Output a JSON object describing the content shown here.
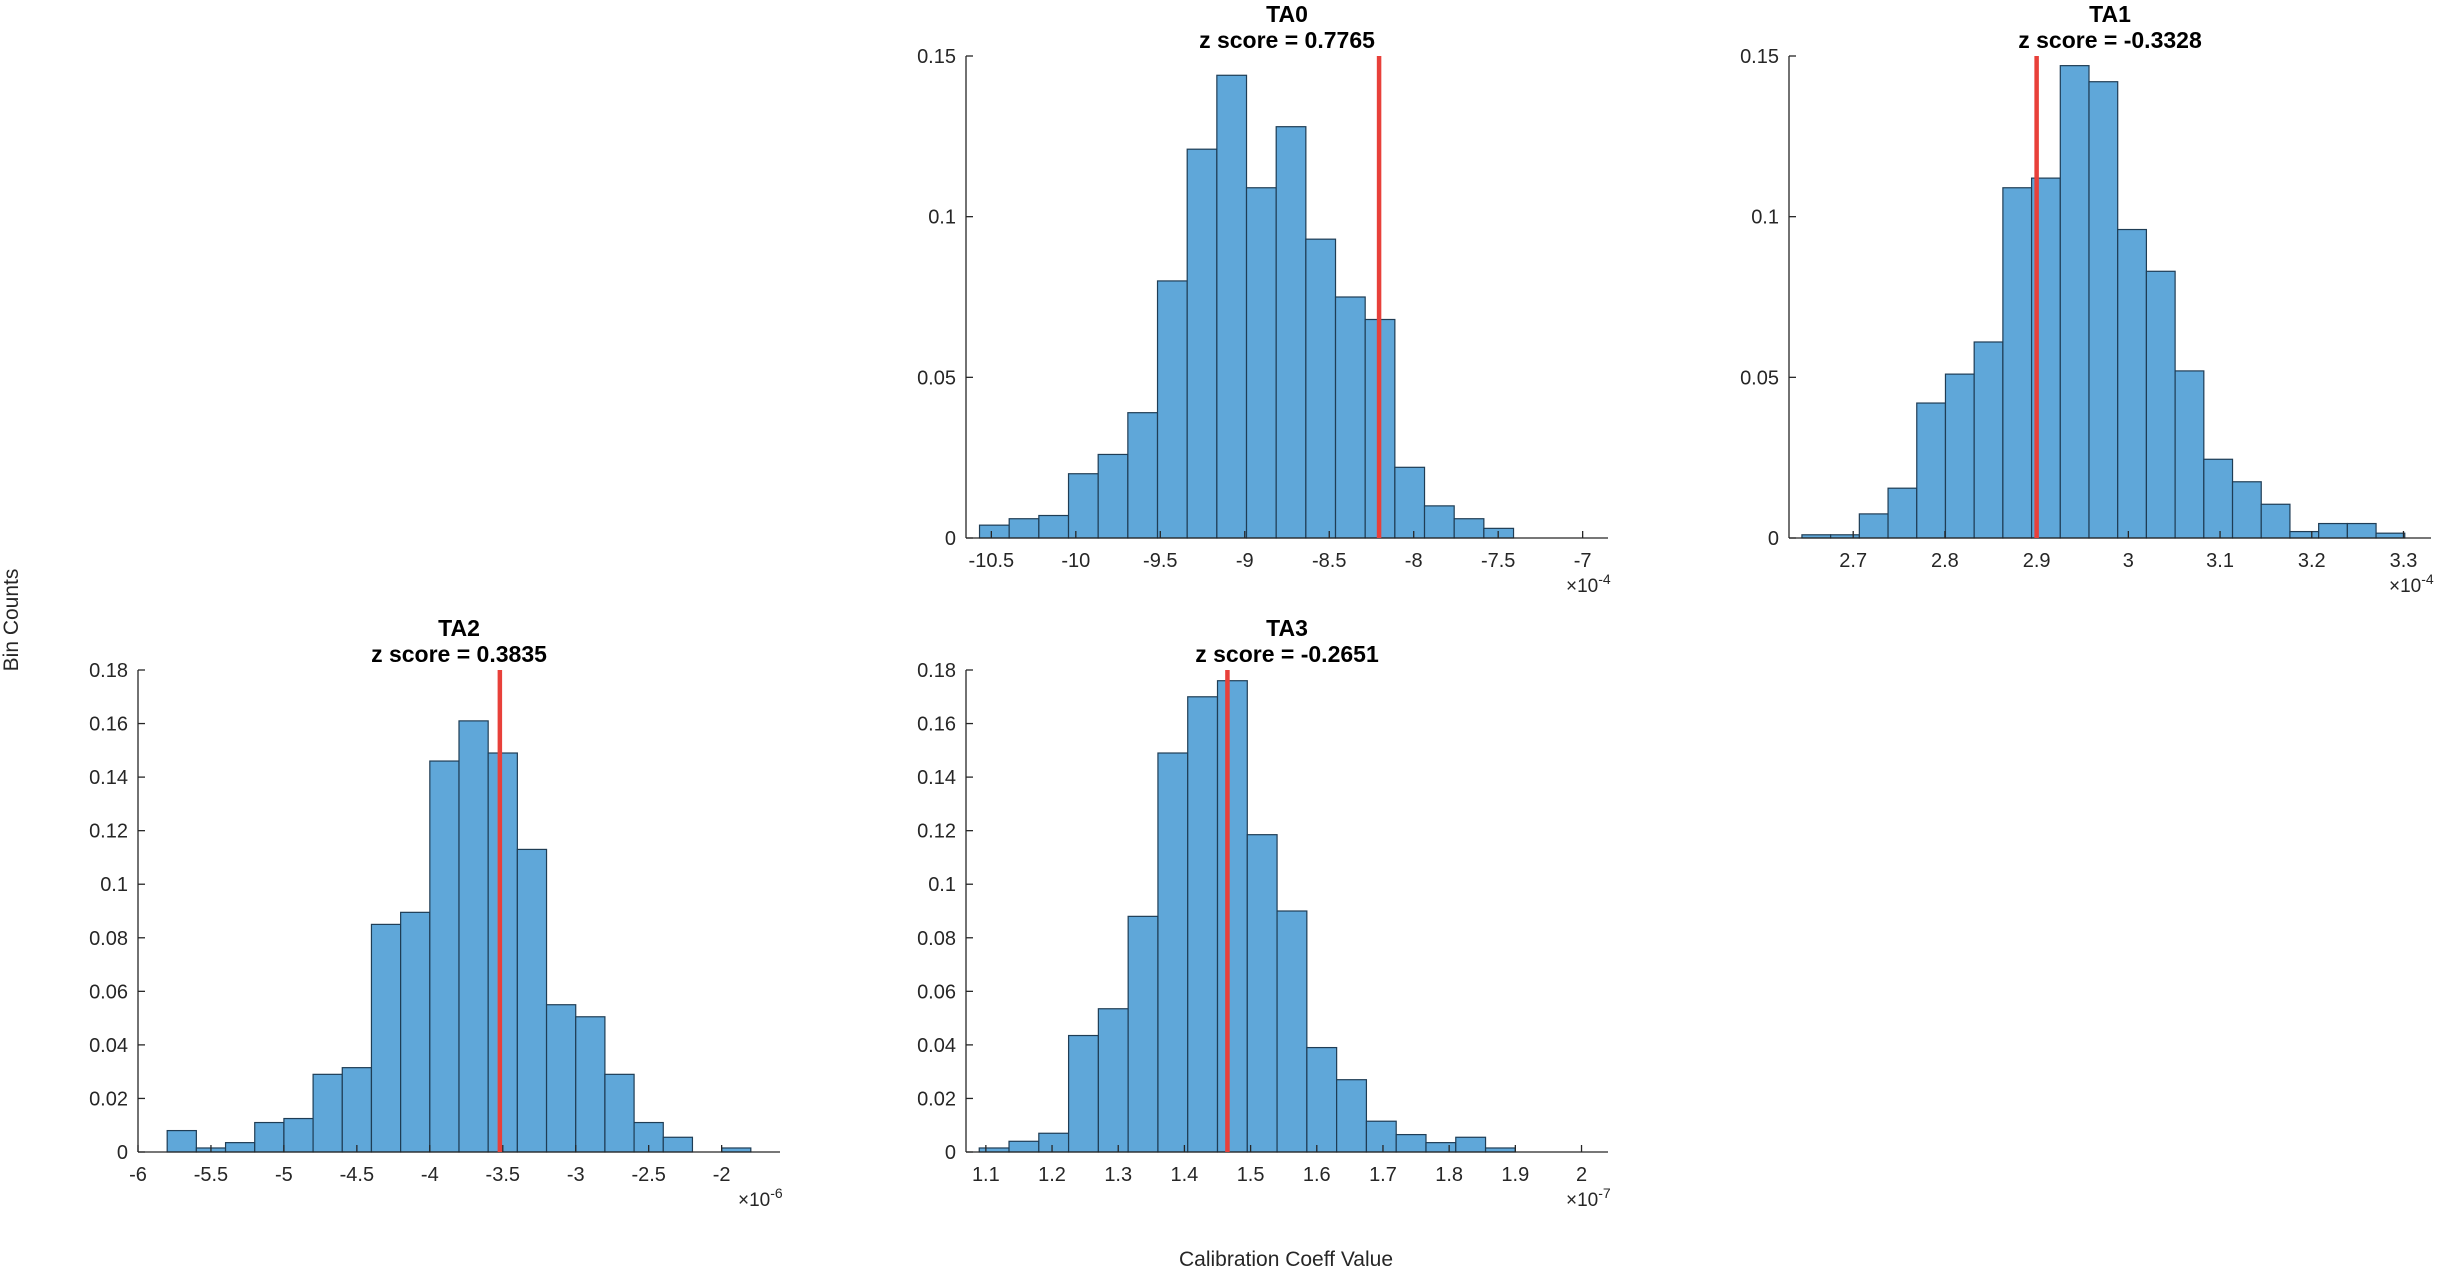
{
  "figure": {
    "ylabel": "Bin Counts",
    "xlabel": "Calibration Coeff Value"
  },
  "colors": {
    "bar_fill": "#5fa7d9",
    "bar_edge": "#1f3d55",
    "marker": "#e8403a",
    "axis": "#262626"
  },
  "chart_data": [
    {
      "type": "bar",
      "name": "TA0",
      "title": "TA0",
      "subtitle": "z score = 0.7765",
      "scale_label": "×10",
      "scale_exponent": "-4",
      "xlim": [
        -10.65,
        -6.85
      ],
      "ylim": [
        0,
        0.15
      ],
      "bin_start": -10.57,
      "bin_width": 0.1756,
      "values": [
        0.004,
        0.006,
        0.007,
        0.02,
        0.026,
        0.039,
        0.08,
        0.121,
        0.144,
        0.109,
        0.128,
        0.093,
        0.075,
        0.068,
        0.022,
        0.01,
        0.006,
        0.003
      ],
      "marker_x": -8.205,
      "xticks": [
        -10.5,
        -10,
        -9.5,
        -9,
        -8.5,
        -8,
        -7.5,
        -7
      ],
      "xtick_labels": [
        "-10.5",
        "-10",
        "-9.5",
        "-9",
        "-8.5",
        "-8",
        "-7.5",
        "-7"
      ],
      "yticks": [
        0,
        0.05,
        0.1,
        0.15
      ],
      "ytick_labels": [
        "0",
        "0.05",
        "0.1",
        "0.15"
      ]
    },
    {
      "type": "bar",
      "name": "TA1",
      "title": "TA1",
      "subtitle": "z score = -0.3328",
      "scale_label": "×10",
      "scale_exponent": "-4",
      "xlim": [
        2.63,
        3.33
      ],
      "ylim": [
        0,
        0.15
      ],
      "bin_start": 2.6441,
      "bin_width": 0.0313,
      "values": [
        0.001,
        0.001,
        0.0075,
        0.0155,
        0.042,
        0.051,
        0.061,
        0.109,
        0.112,
        0.147,
        0.142,
        0.096,
        0.083,
        0.052,
        0.0245,
        0.0175,
        0.0105,
        0.002,
        0.0045,
        0.0045,
        0.0015
      ],
      "marker_x": 2.9,
      "xticks": [
        2.7,
        2.8,
        2.9,
        3,
        3.1,
        3.2,
        3.3
      ],
      "xtick_labels": [
        "2.7",
        "2.8",
        "2.9",
        "3",
        "3.1",
        "3.2",
        "3.3"
      ],
      "yticks": [
        0,
        0.05,
        0.1,
        0.15
      ],
      "ytick_labels": [
        "0",
        "0.05",
        "0.1",
        "0.15"
      ]
    },
    {
      "type": "bar",
      "name": "TA2",
      "title": "TA2",
      "subtitle": "z score = 0.3835",
      "scale_label": "×10",
      "scale_exponent": "-6",
      "xlim": [
        -6,
        -1.6
      ],
      "ylim": [
        0,
        0.18
      ],
      "bin_start": -5.8,
      "bin_width": 0.2,
      "values": [
        0.008,
        0.0015,
        0.0035,
        0.011,
        0.0125,
        0.029,
        0.0315,
        0.085,
        0.0895,
        0.146,
        0.161,
        0.149,
        0.113,
        0.055,
        0.0505,
        0.029,
        0.011,
        0.0055,
        0.0,
        0.0015
      ],
      "marker_x": -3.52,
      "xticks": [
        -6,
        -5.5,
        -5,
        -4.5,
        -4,
        -3.5,
        -3,
        -2.5,
        -2
      ],
      "xtick_labels": [
        "-6",
        "-5.5",
        "-5",
        "-4.5",
        "-4",
        "-3.5",
        "-3",
        "-2.5",
        "-2"
      ],
      "yticks": [
        0,
        0.02,
        0.04,
        0.06,
        0.08,
        0.1,
        0.12,
        0.14,
        0.16,
        0.18
      ],
      "ytick_labels": [
        "0",
        "0.02",
        "0.04",
        "0.06",
        "0.08",
        "0.1",
        "0.12",
        "0.14",
        "0.16",
        "0.18"
      ]
    },
    {
      "type": "bar",
      "name": "TA3",
      "title": "TA3",
      "subtitle": "z score = -0.2651",
      "scale_label": "×10",
      "scale_exponent": "-7",
      "xlim": [
        1.07,
        2.04
      ],
      "ylim": [
        0,
        0.18
      ],
      "bin_start": 1.09,
      "bin_width": 0.045,
      "values": [
        0.0015,
        0.004,
        0.007,
        0.0435,
        0.0535,
        0.088,
        0.149,
        0.17,
        0.176,
        0.1185,
        0.09,
        0.039,
        0.027,
        0.0115,
        0.0065,
        0.0035,
        0.0055,
        0.0015
      ],
      "marker_x": 1.465,
      "xticks": [
        1.1,
        1.2,
        1.3,
        1.4,
        1.5,
        1.6,
        1.7,
        1.8,
        1.9,
        2
      ],
      "xtick_labels": [
        "1.1",
        "1.2",
        "1.3",
        "1.4",
        "1.5",
        "1.6",
        "1.7",
        "1.8",
        "1.9",
        "2"
      ],
      "yticks": [
        0,
        0.02,
        0.04,
        0.06,
        0.08,
        0.1,
        0.12,
        0.14,
        0.16,
        0.18
      ],
      "ytick_labels": [
        "0",
        "0.02",
        "0.04",
        "0.06",
        "0.08",
        "0.1",
        "0.12",
        "0.14",
        "0.16",
        "0.18"
      ]
    }
  ]
}
